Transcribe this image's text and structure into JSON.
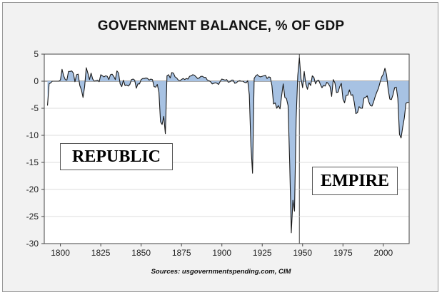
{
  "chart_data": {
    "type": "area",
    "title": "GOVERNMENT BALANCE, % OF GDP",
    "xlabel": "",
    "ylabel": "",
    "xlim": [
      1790,
      2016
    ],
    "ylim": [
      -30,
      5
    ],
    "x_ticks": [
      1800,
      1825,
      1850,
      1875,
      1900,
      1925,
      1950,
      1975,
      2000
    ],
    "y_ticks": [
      5,
      0,
      -5,
      -10,
      -15,
      -20,
      -25,
      -30
    ],
    "grid": "horizontal",
    "fill_color": "#a7c2e3",
    "line_color": "#1a1a1a",
    "annotations": [
      {
        "text": "REPUBLIC"
      },
      {
        "text": "EMPIRE",
        "x_range": [
          1948,
          2016
        ]
      }
    ],
    "source": "Sources:  usgovernmentspending.com, CIM",
    "series": [
      {
        "x": [
          1792,
          1793,
          1794,
          1795,
          1796,
          1797,
          1798,
          1799,
          1800,
          1801,
          1802,
          1803,
          1804,
          1805,
          1806,
          1807,
          1808,
          1809,
          1810,
          1811,
          1812,
          1813,
          1814,
          1815,
          1816,
          1817,
          1818,
          1819,
          1820,
          1821,
          1822,
          1823,
          1824,
          1825,
          1826,
          1827,
          1828,
          1829,
          1830,
          1831,
          1832,
          1833,
          1834,
          1835,
          1836,
          1837,
          1838,
          1839,
          1840,
          1841,
          1842,
          1843,
          1844,
          1845,
          1846,
          1847,
          1848,
          1849,
          1850,
          1851,
          1852,
          1853,
          1854,
          1855,
          1856,
          1857,
          1858,
          1859,
          1860,
          1861,
          1862,
          1863,
          1864,
          1865,
          1866,
          1867,
          1868,
          1869,
          1870,
          1871,
          1872,
          1873,
          1874,
          1875,
          1876,
          1877,
          1878,
          1879,
          1880,
          1881,
          1882,
          1883,
          1884,
          1885,
          1886,
          1887,
          1888,
          1889,
          1890,
          1891,
          1892,
          1893,
          1894,
          1895,
          1896,
          1897,
          1898,
          1899,
          1900,
          1901,
          1902,
          1903,
          1904,
          1905,
          1906,
          1907,
          1908,
          1909,
          1910,
          1911,
          1912,
          1913,
          1914,
          1915,
          1916,
          1917,
          1918,
          1919,
          1920,
          1921,
          1922,
          1923,
          1924,
          1925,
          1926,
          1927,
          1928,
          1929,
          1930,
          1931,
          1932,
          1933,
          1934,
          1935,
          1936,
          1937,
          1938,
          1939,
          1940,
          1941,
          1942,
          1943,
          1944,
          1945,
          1946,
          1947,
          1948,
          1949,
          1950,
          1951,
          1952,
          1953,
          1954,
          1955,
          1956,
          1957,
          1958,
          1959,
          1960,
          1961,
          1962,
          1963,
          1964,
          1965,
          1966,
          1967,
          1968,
          1969,
          1970,
          1971,
          1972,
          1973,
          1974,
          1975,
          1976,
          1977,
          1978,
          1979,
          1980,
          1981,
          1982,
          1983,
          1984,
          1985,
          1986,
          1987,
          1988,
          1989,
          1990,
          1991,
          1992,
          1993,
          1994,
          1995,
          1996,
          1997,
          1998,
          1999,
          2000,
          2001,
          2002,
          2003,
          2004,
          2005,
          2006,
          2007,
          2008,
          2009,
          2010,
          2011,
          2012,
          2013,
          2014,
          2015,
          2016
        ],
        "values": [
          -4.5,
          -0.5,
          -0.3,
          0,
          0,
          0,
          0,
          0,
          0.2,
          2.2,
          1,
          0.3,
          0.2,
          1.8,
          1.8,
          1.9,
          1.5,
          -0.1,
          1.2,
          1.3,
          -0.8,
          -1.6,
          -3,
          -1,
          2.5,
          1.5,
          0.3,
          1.5,
          0.4,
          0,
          0.1,
          0.2,
          -0.1,
          1.2,
          1,
          0.8,
          1,
          0.9,
          0.3,
          1.2,
          1.3,
          0.9,
          0.3,
          1.9,
          1.5,
          -0.5,
          -1,
          0.2,
          -0.8,
          -0.7,
          -0.9,
          -0.6,
          0.3,
          0.4,
          0.2,
          -1.3,
          -0.5,
          -0.5,
          0.3,
          0.5,
          0.5,
          0.6,
          0.5,
          0.2,
          0.4,
          0.3,
          -1,
          -1.1,
          -0.6,
          -2,
          -7.5,
          -8,
          -6.5,
          -9.7,
          1,
          1.2,
          0.6,
          1.6,
          1.5,
          0.8,
          0.6,
          0.2,
          0.1,
          0.3,
          0.5,
          0.3,
          0.5,
          0.4,
          0.9,
          1,
          1.2,
          1.1,
          0.8,
          0.5,
          0.6,
          0.9,
          0.9,
          0.7,
          0.7,
          0.2,
          0.1,
          -0.1,
          -0.5,
          -0.4,
          -0.3,
          -0.4,
          -0.6,
          0,
          0.4,
          0.3,
          0.2,
          0.3,
          -0.2,
          -0.1,
          0.2,
          0.2,
          -0.4,
          -0.3,
          0,
          0.1,
          0,
          0,
          -0.2,
          -0.3,
          0.1,
          -2.5,
          -12,
          -17,
          0.5,
          1,
          1.2,
          0.9,
          0.8,
          0.9,
          1,
          1.1,
          0.5,
          0.8,
          0.7,
          -0.8,
          -4.2,
          -4,
          -5,
          -4.5,
          -5.1,
          -2.7,
          -0.5,
          -3,
          -3.2,
          -4.5,
          -15,
          -28,
          -22,
          -24,
          -7,
          1,
          4.3,
          0.5,
          -1.2,
          1.8,
          -0.5,
          -1.5,
          -0.3,
          -0.8,
          1,
          0.7,
          -0.5,
          0.1,
          0.2,
          -0.6,
          -1.2,
          -0.8,
          -0.9,
          -0.2,
          -0.5,
          -1,
          -2.8,
          0.3,
          -0.3,
          -2.1,
          -2,
          -1,
          -0.4,
          -3.3,
          -4,
          -2.6,
          -2.6,
          -1.6,
          -2.6,
          -2.5,
          -3.9,
          -6,
          -5.8,
          -4.7,
          -5,
          -5,
          -3.1,
          -3,
          -2.7,
          -3.8,
          -4.5,
          -4.6,
          -3.8,
          -2.8,
          -2,
          -1.3,
          -0.2,
          0.8,
          1.3,
          2.4,
          1.2,
          -1.5,
          -3.3,
          -3.4,
          -2.5,
          -1.2,
          -1.1,
          -3.2,
          -9.8,
          -10.5,
          -8.5,
          -6.8,
          -4.1,
          -3.9,
          -3.9
        ]
      }
    ]
  }
}
